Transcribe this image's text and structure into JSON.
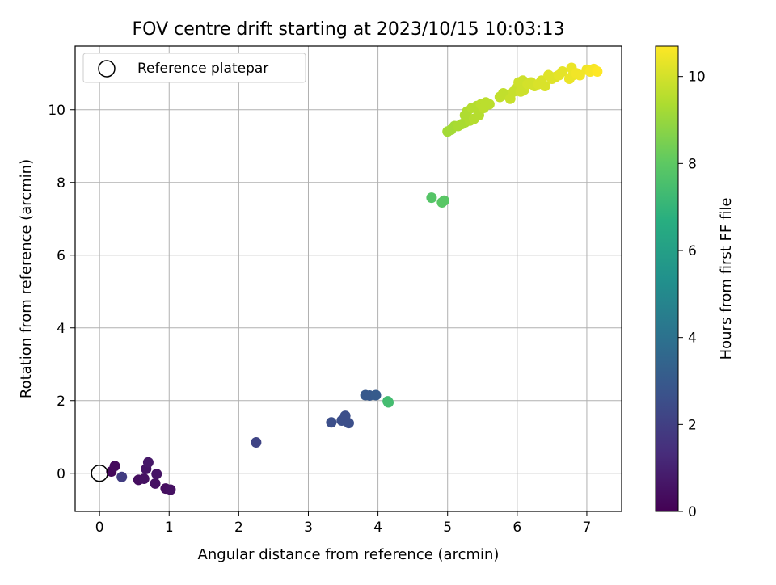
{
  "chart_data": {
    "type": "scatter",
    "title": "FOV centre drift starting at 2023/10/15 10:03:13",
    "xlabel": "Angular distance from reference (arcmin)",
    "ylabel": "Rotation from reference (arcmin)",
    "xlim": [
      -0.35,
      7.5
    ],
    "ylim": [
      -1.05,
      11.75
    ],
    "xticks": [
      0,
      1,
      2,
      3,
      4,
      5,
      6,
      7
    ],
    "yticks": [
      0,
      2,
      4,
      6,
      8,
      10
    ],
    "grid": true,
    "legend": {
      "position": "top-left",
      "entries": [
        "Reference platepar"
      ]
    },
    "reference_point": {
      "x": 0,
      "y": 0
    },
    "colorbar": {
      "label": "Hours from first FF file",
      "range": [
        0,
        10.7
      ],
      "ticks": [
        0,
        2,
        4,
        6,
        8,
        10
      ],
      "colormap": "viridis"
    },
    "points": [
      {
        "x": 0.17,
        "y": 0.05,
        "h": 0.2
      },
      {
        "x": 0.22,
        "y": 0.2,
        "h": 0.3
      },
      {
        "x": 0.32,
        "y": -0.1,
        "h": 1.9
      },
      {
        "x": 0.56,
        "y": -0.18,
        "h": 0.4
      },
      {
        "x": 0.64,
        "y": -0.15,
        "h": 0.5
      },
      {
        "x": 0.67,
        "y": 0.12,
        "h": 0.6
      },
      {
        "x": 0.7,
        "y": 0.3,
        "h": 0.7
      },
      {
        "x": 0.8,
        "y": -0.28,
        "h": 0.5
      },
      {
        "x": 0.82,
        "y": -0.02,
        "h": 0.6
      },
      {
        "x": 0.95,
        "y": -0.42,
        "h": 0.4
      },
      {
        "x": 1.02,
        "y": -0.45,
        "h": 0.5
      },
      {
        "x": 2.25,
        "y": 0.85,
        "h": 2.2
      },
      {
        "x": 3.33,
        "y": 1.4,
        "h": 2.6
      },
      {
        "x": 3.48,
        "y": 1.45,
        "h": 2.6
      },
      {
        "x": 3.53,
        "y": 1.58,
        "h": 2.6
      },
      {
        "x": 3.58,
        "y": 1.38,
        "h": 2.6
      },
      {
        "x": 3.82,
        "y": 2.15,
        "h": 3.0
      },
      {
        "x": 3.88,
        "y": 2.14,
        "h": 3.0
      },
      {
        "x": 3.97,
        "y": 2.15,
        "h": 3.1
      },
      {
        "x": 4.14,
        "y": 1.98,
        "h": 7.3
      },
      {
        "x": 4.15,
        "y": 1.95,
        "h": 7.4
      },
      {
        "x": 4.77,
        "y": 7.58,
        "h": 7.8
      },
      {
        "x": 4.92,
        "y": 7.45,
        "h": 7.9
      },
      {
        "x": 4.95,
        "y": 7.5,
        "h": 7.9
      },
      {
        "x": 5.0,
        "y": 9.4,
        "h": 9.2
      },
      {
        "x": 5.05,
        "y": 9.45,
        "h": 9.2
      },
      {
        "x": 5.1,
        "y": 9.55,
        "h": 9.2
      },
      {
        "x": 5.15,
        "y": 9.55,
        "h": 9.3
      },
      {
        "x": 5.2,
        "y": 9.6,
        "h": 9.3
      },
      {
        "x": 5.25,
        "y": 9.65,
        "h": 9.3
      },
      {
        "x": 5.25,
        "y": 9.85,
        "h": 9.4
      },
      {
        "x": 5.28,
        "y": 9.95,
        "h": 9.4
      },
      {
        "x": 5.32,
        "y": 9.7,
        "h": 9.4
      },
      {
        "x": 5.35,
        "y": 10.05,
        "h": 9.5
      },
      {
        "x": 5.38,
        "y": 9.75,
        "h": 9.5
      },
      {
        "x": 5.42,
        "y": 10.1,
        "h": 9.5
      },
      {
        "x": 5.45,
        "y": 9.85,
        "h": 9.5
      },
      {
        "x": 5.48,
        "y": 10.15,
        "h": 9.6
      },
      {
        "x": 5.52,
        "y": 10.05,
        "h": 9.6
      },
      {
        "x": 5.55,
        "y": 10.2,
        "h": 9.6
      },
      {
        "x": 5.6,
        "y": 10.15,
        "h": 9.6
      },
      {
        "x": 5.75,
        "y": 10.35,
        "h": 9.7
      },
      {
        "x": 5.8,
        "y": 10.45,
        "h": 9.7
      },
      {
        "x": 5.85,
        "y": 10.4,
        "h": 9.7
      },
      {
        "x": 5.9,
        "y": 10.3,
        "h": 9.8
      },
      {
        "x": 5.95,
        "y": 10.5,
        "h": 9.8
      },
      {
        "x": 6.0,
        "y": 10.6,
        "h": 9.8
      },
      {
        "x": 6.02,
        "y": 10.75,
        "h": 9.9
      },
      {
        "x": 6.05,
        "y": 10.5,
        "h": 9.9
      },
      {
        "x": 6.08,
        "y": 10.8,
        "h": 9.9
      },
      {
        "x": 6.1,
        "y": 10.55,
        "h": 9.9
      },
      {
        "x": 6.15,
        "y": 10.7,
        "h": 10.0
      },
      {
        "x": 6.2,
        "y": 10.75,
        "h": 10.0
      },
      {
        "x": 6.25,
        "y": 10.65,
        "h": 10.0
      },
      {
        "x": 6.3,
        "y": 10.7,
        "h": 10.1
      },
      {
        "x": 6.35,
        "y": 10.8,
        "h": 10.1
      },
      {
        "x": 6.4,
        "y": 10.65,
        "h": 10.1
      },
      {
        "x": 6.45,
        "y": 10.95,
        "h": 10.2
      },
      {
        "x": 6.5,
        "y": 10.85,
        "h": 10.2
      },
      {
        "x": 6.55,
        "y": 10.9,
        "h": 10.2
      },
      {
        "x": 6.6,
        "y": 10.95,
        "h": 10.3
      },
      {
        "x": 6.65,
        "y": 11.05,
        "h": 10.3
      },
      {
        "x": 6.75,
        "y": 10.85,
        "h": 10.4
      },
      {
        "x": 6.78,
        "y": 11.15,
        "h": 10.4
      },
      {
        "x": 6.8,
        "y": 10.95,
        "h": 10.4
      },
      {
        "x": 6.85,
        "y": 11.0,
        "h": 10.5
      },
      {
        "x": 6.9,
        "y": 10.95,
        "h": 10.5
      },
      {
        "x": 7.0,
        "y": 11.1,
        "h": 10.5
      },
      {
        "x": 7.05,
        "y": 11.05,
        "h": 10.6
      },
      {
        "x": 7.1,
        "y": 11.12,
        "h": 10.6
      },
      {
        "x": 7.15,
        "y": 11.05,
        "h": 10.7
      }
    ]
  }
}
